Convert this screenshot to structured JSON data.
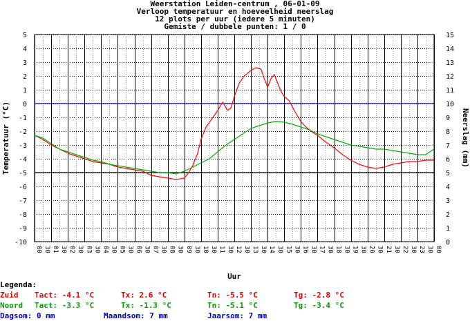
{
  "titles": {
    "line1": "Weerstation Leiden-centrum , 06-01-09",
    "line2": "Verloop temperatuur en hoeveelheid neerslag",
    "line3": "12 plots per uur (iedere 5 minuten)",
    "line4": "Gemiste / dubbele punten: 1 / 0"
  },
  "chart_data": {
    "type": "line",
    "xlabel": "Uur",
    "ylabel": "Temperatuur (°C)",
    "y2label": "Neerslag (mm)",
    "ylim": [
      -10,
      5
    ],
    "y2lim": [
      0,
      15
    ],
    "y_ticks": [
      "5",
      "4",
      "3",
      "2",
      "1",
      "0",
      "-1",
      "-2",
      "-3",
      "-4",
      "-5",
      "-6",
      "-7",
      "-8",
      "-9",
      "-10"
    ],
    "y2_ticks": [
      "15",
      "14",
      "13",
      "12",
      "11",
      "10",
      "9",
      "8",
      "7",
      "6",
      "5",
      "4",
      "3",
      "2",
      "1",
      "0"
    ],
    "x_hour_labels": [
      "00",
      "01",
      "02",
      "03",
      "04",
      "05",
      "06",
      "07",
      "08",
      "09",
      "10",
      "11",
      "12",
      "13",
      "14",
      "15",
      "16",
      "17",
      "18",
      "19",
      "20",
      "21",
      "22",
      "23",
      "00"
    ],
    "x_half_label": "30",
    "grid": true,
    "series": [
      {
        "name": "Zuid",
        "color": "#ff0000",
        "x": [
          0,
          0.5,
          1,
          1.5,
          2,
          2.5,
          3,
          3.5,
          4,
          4.5,
          5,
          5.5,
          6,
          6.5,
          7,
          7.5,
          8,
          8.5,
          9,
          9.2,
          9.5,
          9.8,
          10,
          10.3,
          10.6,
          11,
          11.3,
          11.6,
          11.8,
          12,
          12.3,
          12.6,
          13,
          13.3,
          13.6,
          13.8,
          14,
          14.2,
          14.4,
          14.6,
          14.8,
          15,
          15.3,
          15.6,
          16,
          16.3,
          16.6,
          17,
          17.5,
          18,
          18.5,
          19,
          19.5,
          20,
          20.5,
          21,
          21.5,
          22,
          22.5,
          23,
          23.5,
          24
        ],
        "values": [
          -2.3,
          -2.6,
          -3.0,
          -3.3,
          -3.6,
          -3.8,
          -4.0,
          -4.2,
          -4.3,
          -4.4,
          -4.6,
          -4.7,
          -4.8,
          -4.9,
          -5.2,
          -5.3,
          -5.4,
          -5.5,
          -5.4,
          -5.1,
          -4.5,
          -3.6,
          -2.6,
          -1.7,
          -1.2,
          -0.5,
          0.1,
          -0.5,
          -0.3,
          0.5,
          1.5,
          2.0,
          2.4,
          2.6,
          2.5,
          1.8,
          1.2,
          1.8,
          2.1,
          1.5,
          0.9,
          0.5,
          0.2,
          -0.5,
          -1.3,
          -1.7,
          -2.0,
          -2.3,
          -2.8,
          -3.2,
          -3.7,
          -4.1,
          -4.4,
          -4.6,
          -4.7,
          -4.6,
          -4.4,
          -4.3,
          -4.2,
          -4.2,
          -4.1,
          -4.1
        ]
      },
      {
        "name": "Noord",
        "color": "#00b000",
        "x": [
          0,
          0.5,
          1,
          1.5,
          2,
          2.5,
          3,
          3.5,
          4,
          4.5,
          5,
          5.5,
          6,
          6.5,
          7,
          7.5,
          8,
          8.5,
          9,
          9.5,
          10,
          10.5,
          11,
          11.5,
          12,
          12.5,
          13,
          13.5,
          14,
          14.5,
          15,
          15.5,
          16,
          16.5,
          17,
          17.5,
          18,
          18.5,
          19,
          19.5,
          20,
          20.5,
          21,
          21.5,
          22,
          22.5,
          23,
          23.5,
          24
        ],
        "values": [
          -2.3,
          -2.5,
          -2.9,
          -3.3,
          -3.5,
          -3.7,
          -3.9,
          -4.1,
          -4.2,
          -4.4,
          -4.5,
          -4.6,
          -4.7,
          -4.8,
          -4.9,
          -5.0,
          -5.0,
          -5.1,
          -4.9,
          -4.6,
          -4.3,
          -4.0,
          -3.5,
          -3.0,
          -2.6,
          -2.2,
          -1.8,
          -1.6,
          -1.4,
          -1.3,
          -1.35,
          -1.5,
          -1.7,
          -1.9,
          -2.2,
          -2.4,
          -2.6,
          -2.8,
          -3.0,
          -3.1,
          -3.2,
          -3.3,
          -3.3,
          -3.4,
          -3.5,
          -3.6,
          -3.7,
          -3.7,
          -3.3
        ]
      }
    ],
    "reference_line_y": 0
  },
  "legend": {
    "title": "Legenda:",
    "zuid": {
      "name": "Zuid",
      "tact": "Tact: -4.1 °C",
      "tx": "Tx: 2.6 °C",
      "tn": "Tn: -5.5 °C",
      "tg": "Tg: -2.8 °C"
    },
    "noord": {
      "name": "Noord",
      "tact": "Tact: -3.3 °C",
      "tx": "Tx: -1.3 °C",
      "tn": "Tn: -5.1 °C",
      "tg": "Tg: -3.4 °C"
    },
    "rain": {
      "dag": "Dagsom: 0 mm",
      "maand": "Maandsom: 7 mm",
      "jaar": "Jaarsom: 7 mm"
    }
  }
}
